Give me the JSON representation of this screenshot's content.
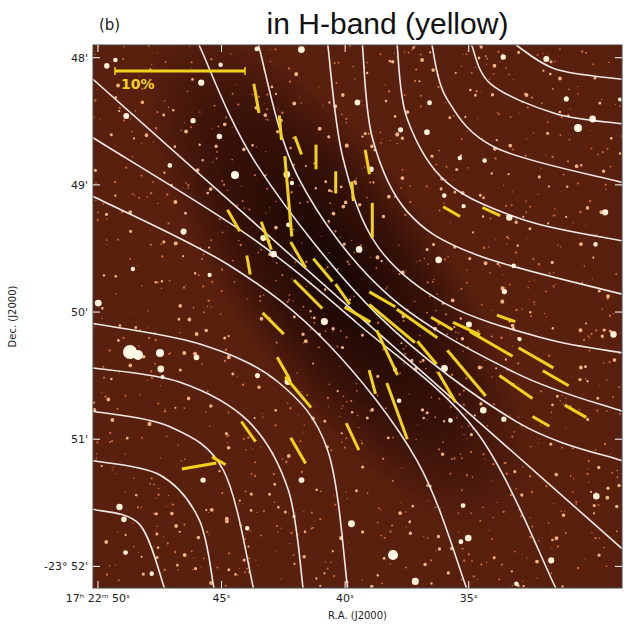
{
  "chart_data": {
    "type": "polarization_map",
    "panel_label": "(b)",
    "title": "in H-band (yellow)",
    "x_label": "R.A. (J2000)",
    "y_label": "Dec. (J2000)",
    "xlim": [
      50.2,
      28.8
    ],
    "ylim": [
      52.17,
      47.9
    ],
    "xticks": [
      {
        "value": 50,
        "label": "17ʰ 22ᵐ 50ˢ"
      },
      {
        "value": 45,
        "label": "45ˢ"
      },
      {
        "value": 40,
        "label": "40ˢ"
      },
      {
        "value": 35,
        "label": "35ˢ"
      }
    ],
    "yticks": [
      {
        "value": 48,
        "label": "48'"
      },
      {
        "value": 49,
        "label": "49'"
      },
      {
        "value": 50,
        "label": "50'"
      },
      {
        "value": 51,
        "label": "51'"
      },
      {
        "value": 52,
        "label": "-23° 52'"
      }
    ],
    "scale_bar": {
      "value": 10,
      "label": "10%"
    },
    "vectors": {
      "color": "#f2d21b",
      "x": [
        43.59,
        42.62,
        41.9,
        41.18,
        40.38,
        39.7,
        39.1,
        38.9,
        42.3,
        43.19,
        41.9,
        43.91,
        40.9,
        41.5,
        40.1,
        39.5,
        38.1,
        37.09,
        36.09,
        35.09,
        33.49,
        34.09,
        32.28,
        31.48,
        33.09,
        35.09,
        35.89,
        36.69,
        38.3,
        37.9,
        38.9,
        39.7,
        41.9,
        42.5,
        41.9,
        43.91,
        45.11,
        45.91,
        38.5,
        35.69,
        34.09,
        30.68,
        32.08,
        44.51,
        42.91
      ],
      "y": [
        48.32,
        48.55,
        48.69,
        48.78,
        48.98,
        49.05,
        48.82,
        49.28,
        49.09,
        49.4,
        49.55,
        49.63,
        49.67,
        49.86,
        49.86,
        50.02,
        50.09,
        50.09,
        50.09,
        50.13,
        50.05,
        50.25,
        50.36,
        50.52,
        50.59,
        50.48,
        50.59,
        50.32,
        50.32,
        50.78,
        50.55,
        50.98,
        50.63,
        50.44,
        51.09,
        50.94,
        51.17,
        51.21,
        49.9,
        49.21,
        49.21,
        50.78,
        50.86,
        49.28,
        50.09
      ],
      "p": [
        2.3,
        1.9,
        1.5,
        1.9,
        1.7,
        1.5,
        1.9,
        2.7,
        6.2,
        2.3,
        2.3,
        1.5,
        2.3,
        3.1,
        1.9,
        2.3,
        4.6,
        3.8,
        1.9,
        2.3,
        1.5,
        3.8,
        3.1,
        2.3,
        3.1,
        4.6,
        2.7,
        2.3,
        3.8,
        4.6,
        1.9,
        2.3,
        3.1,
        1.9,
        2.3,
        1.9,
        1.2,
        2.7,
        2.3,
        1.5,
        1.5,
        1.9,
        1.5,
        1.9,
        2.3
      ],
      "angle": [
        10,
        5,
        20,
        0,
        0,
        5,
        10,
        0,
        5,
        20,
        30,
        10,
        40,
        45,
        35,
        60,
        50,
        55,
        60,
        65,
        70,
        60,
        60,
        60,
        55,
        40,
        30,
        40,
        25,
        20,
        15,
        25,
        40,
        30,
        30,
        35,
        60,
        100,
        60,
        60,
        65,
        60,
        60,
        30,
        45
      ]
    },
    "field_lines": {
      "color": "#ffffff",
      "lines": [
        [
          [
            40.7,
            47.9
          ],
          [
            40.1,
            48.78
          ],
          [
            38.7,
            49.48
          ],
          [
            35.89,
            49.94
          ],
          [
            31.88,
            50.21
          ],
          [
            28.8,
            50.32
          ]
        ],
        [
          [
            39.3,
            47.9
          ],
          [
            38.9,
            48.63
          ],
          [
            37.49,
            49.21
          ],
          [
            34.69,
            49.55
          ],
          [
            28.8,
            49.86
          ]
        ],
        [
          [
            37.9,
            47.9
          ],
          [
            37.49,
            48.48
          ],
          [
            35.89,
            48.98
          ],
          [
            32.69,
            49.28
          ],
          [
            28.8,
            49.44
          ]
        ],
        [
          [
            36.49,
            47.9
          ],
          [
            35.89,
            48.32
          ],
          [
            33.89,
            48.71
          ],
          [
            28.8,
            48.98
          ]
        ],
        [
          [
            34.89,
            47.9
          ],
          [
            34.09,
            48.21
          ],
          [
            31.48,
            48.44
          ],
          [
            28.8,
            48.52
          ]
        ],
        [
          [
            33.09,
            47.9
          ],
          [
            31.48,
            48.09
          ],
          [
            28.8,
            48.17
          ]
        ],
        [
          [
            50.2,
            50.09
          ],
          [
            45.91,
            50.25
          ],
          [
            42.71,
            50.55
          ],
          [
            40.7,
            51.09
          ],
          [
            39.9,
            52.17
          ]
        ],
        [
          [
            50.2,
            50.44
          ],
          [
            46.71,
            50.55
          ],
          [
            43.91,
            50.86
          ],
          [
            42.3,
            51.4
          ],
          [
            41.7,
            52.17
          ]
        ],
        [
          [
            50.2,
            50.78
          ],
          [
            47.11,
            50.9
          ],
          [
            44.91,
            51.25
          ],
          [
            43.71,
            52.17
          ]
        ],
        [
          [
            50.2,
            51.17
          ],
          [
            47.51,
            51.28
          ],
          [
            45.91,
            51.63
          ],
          [
            45.31,
            52.17
          ]
        ],
        [
          [
            50.2,
            51.55
          ],
          [
            48.32,
            51.67
          ],
          [
            47.31,
            52.17
          ]
        ],
        [
          [
            50.2,
            48.17
          ],
          [
            39.5,
            50.02
          ],
          [
            28.8,
            51.86
          ]
        ],
        [
          [
            50.2,
            48.63
          ],
          [
            43.91,
            49.4
          ],
          [
            39.5,
            50.09
          ],
          [
            34.69,
            50.94
          ],
          [
            31.48,
            52.17
          ]
        ],
        [
          [
            50.2,
            49.09
          ],
          [
            44.71,
            49.63
          ],
          [
            40.7,
            50.25
          ],
          [
            37.09,
            51.17
          ],
          [
            35.09,
            52.17
          ]
        ],
        [
          [
            43.51,
            47.9
          ],
          [
            41.9,
            48.94
          ],
          [
            38.3,
            49.86
          ],
          [
            33.09,
            50.48
          ],
          [
            28.8,
            50.78
          ]
        ],
        [
          [
            45.91,
            47.9
          ],
          [
            43.51,
            48.86
          ],
          [
            38.7,
            50.02
          ],
          [
            33.09,
            50.86
          ],
          [
            28.8,
            51.17
          ]
        ]
      ]
    }
  }
}
